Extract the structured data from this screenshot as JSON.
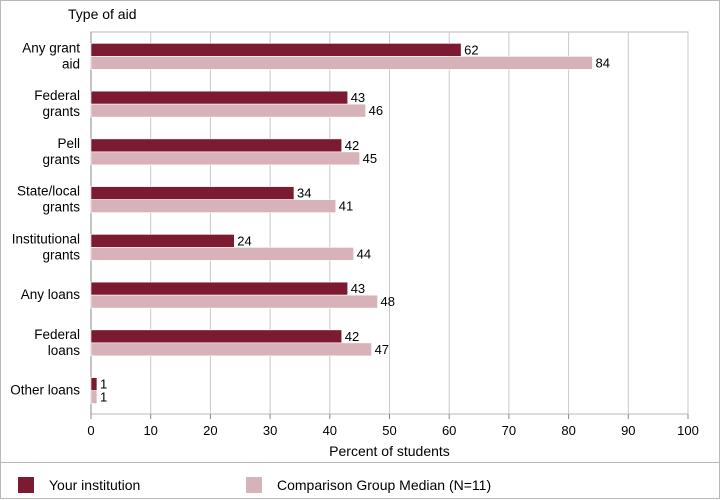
{
  "chart_data": {
    "type": "bar",
    "orientation": "horizontal",
    "title": "",
    "ylabel": "Type of aid",
    "xlabel": "Percent of students",
    "categories": [
      [
        "Any grant",
        "aid"
      ],
      [
        "Federal",
        "grants"
      ],
      [
        "Pell",
        "grants"
      ],
      [
        "State/local",
        "grants"
      ],
      [
        "Institutional",
        "grants"
      ],
      [
        "Any loans"
      ],
      [
        "Federal",
        "loans"
      ],
      [
        "Other loans"
      ]
    ],
    "series": [
      {
        "name": "Your institution",
        "color": "#7b1a30",
        "values": [
          62,
          43,
          42,
          34,
          24,
          43,
          42,
          1
        ]
      },
      {
        "name": "Comparison Group Median (N=11)",
        "color": "#d8b2b9",
        "values": [
          84,
          46,
          45,
          41,
          44,
          48,
          47,
          1
        ]
      }
    ],
    "xlim": [
      0,
      100
    ],
    "xticks": [
      0,
      10,
      20,
      30,
      40,
      50,
      60,
      70,
      80,
      90,
      100
    ],
    "grid": true,
    "legend_position": "bottom"
  }
}
